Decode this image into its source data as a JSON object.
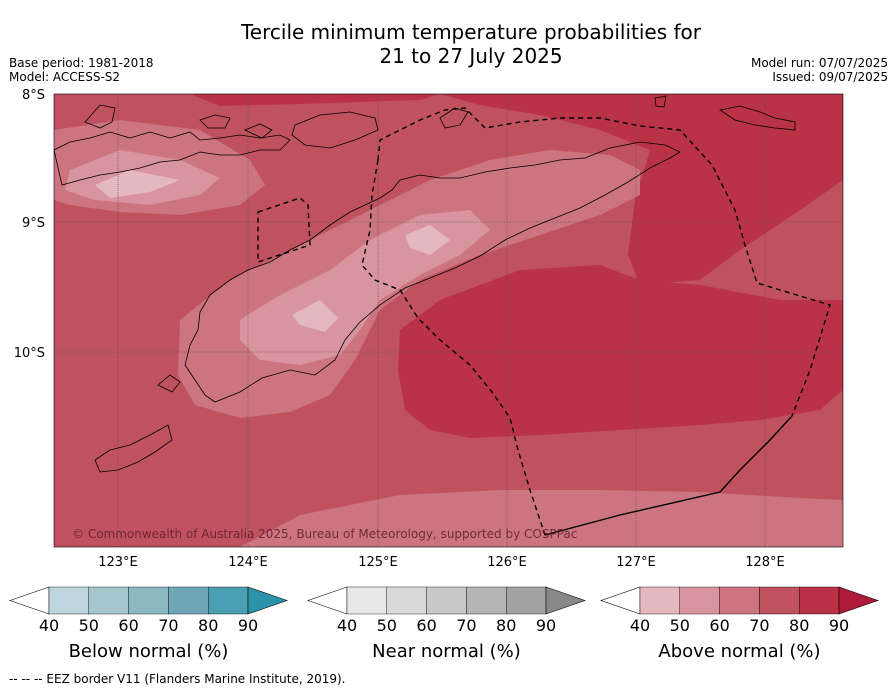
{
  "title_line1": "Tercile minimum temperature probabilities for",
  "title_line2": "21 to 27 July 2025",
  "meta_left": [
    "Base period: 1981-2018",
    "Model: ACCESS-S2"
  ],
  "meta_right": [
    "Model run: 07/07/2025",
    "Issued: 09/07/2025"
  ],
  "latitudes": [
    "8°S",
    "9°S",
    "10°S"
  ],
  "longitudes": [
    "123°E",
    "124°E",
    "125°E",
    "126°E",
    "127°E",
    "128°E"
  ],
  "copyright": "© Commonwealth of Australia 2025, Bureau of Meteorology, supported by COSPPac",
  "colorbars": [
    {
      "title": "Below normal (%)",
      "ticks": [
        "40",
        "50",
        "60",
        "70",
        "80",
        "90"
      ],
      "colors": [
        "#ffffff",
        "#bdd5dc",
        "#a6c7cf",
        "#8cb8c3",
        "#6ea8b6",
        "#4aa0b2",
        "#2b94aa"
      ]
    },
    {
      "title": "Near normal (%)",
      "ticks": [
        "40",
        "50",
        "60",
        "70",
        "80",
        "90"
      ],
      "colors": [
        "#ffffff",
        "#e8e8e8",
        "#d9d9d9",
        "#c9c9c9",
        "#b5b5b5",
        "#a2a2a2",
        "#888888"
      ]
    },
    {
      "title": "Above normal (%)",
      "ticks": [
        "40",
        "50",
        "60",
        "70",
        "80",
        "90"
      ],
      "colors": [
        "#ffffff",
        "#e3b8bf",
        "#d8959f",
        "#cc7480",
        "#c0515f",
        "#b93246",
        "#ad1a3a"
      ]
    }
  ],
  "footnote": "--  --  -- EEZ border V11 (Flanders Marine Institute, 2019)."
}
